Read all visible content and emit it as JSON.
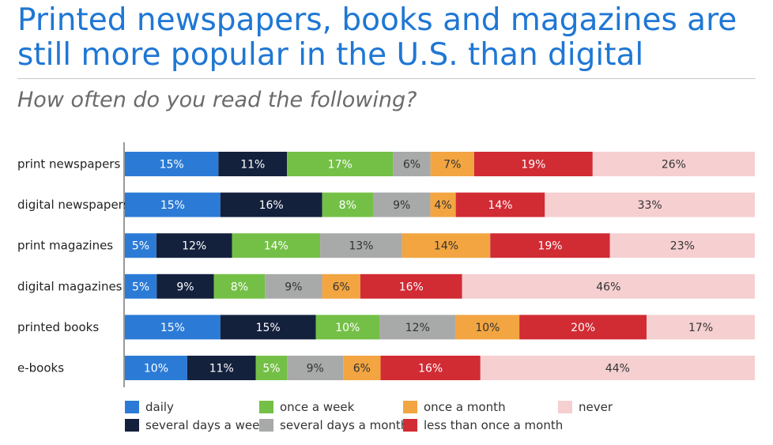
{
  "title": "Printed newspapers, books and magazines are still more popular in the U.S. than digital",
  "subtitle": "How often do you read the following?",
  "colors": {
    "daily": "#2b7bd6",
    "several_days_week": "#14213d",
    "once_week": "#74c047",
    "several_days_month": "#a8a9a9",
    "once_month": "#f2a541",
    "less_than_month": "#d12b34",
    "never": "#f6cfd1"
  },
  "chart_data": {
    "type": "bar",
    "orientation": "horizontal-stacked",
    "categories": [
      "print newspapers",
      "digital newspapers",
      "print magazines",
      "digital magazines",
      "printed books",
      "e-books"
    ],
    "series": [
      {
        "name": "daily",
        "values": [
          15,
          15,
          5,
          5,
          15,
          10
        ]
      },
      {
        "name": "several days a week",
        "values": [
          11,
          16,
          12,
          9,
          15,
          11
        ]
      },
      {
        "name": "once a week",
        "values": [
          17,
          8,
          14,
          8,
          10,
          5
        ]
      },
      {
        "name": "several days a month",
        "values": [
          6,
          9,
          13,
          9,
          12,
          9
        ]
      },
      {
        "name": "once a month",
        "values": [
          7,
          4,
          14,
          6,
          10,
          6
        ]
      },
      {
        "name": "less than once a month",
        "values": [
          19,
          14,
          19,
          16,
          20,
          16
        ]
      },
      {
        "name": "never",
        "values": [
          26,
          33,
          23,
          46,
          17,
          44
        ]
      }
    ],
    "value_suffix": "%",
    "legend_position": "bottom"
  }
}
